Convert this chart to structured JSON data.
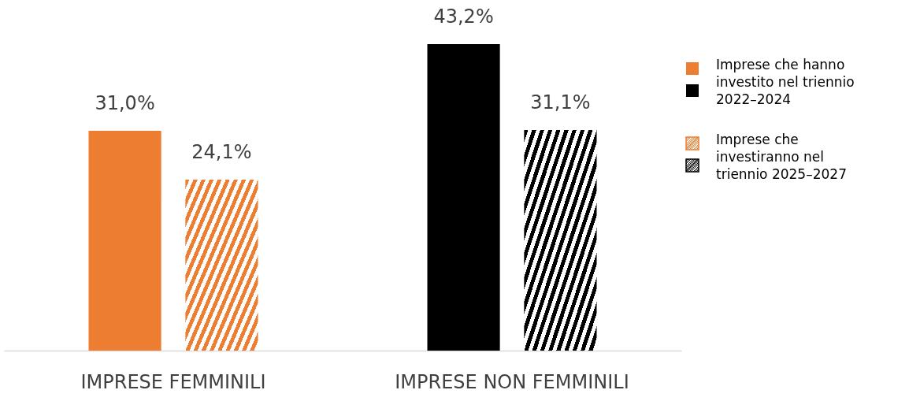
{
  "chart_data": {
    "type": "bar",
    "categories": [
      "IMPRESE FEMMINILI",
      "IMPRESE NON FEMMINILI"
    ],
    "series": [
      {
        "name": "Imprese che hanno investito nel triennio 2022–2024",
        "colors": [
          "#ed7d31",
          "#000000"
        ],
        "values": [
          31.0,
          43.2
        ],
        "value_labels": [
          "31,0%",
          "43,2%"
        ]
      },
      {
        "name": "Imprese che investiranno nel triennio 2025–2027",
        "colors": [
          "#ed7d31",
          "#000000"
        ],
        "values": [
          24.1,
          31.1
        ],
        "value_labels": [
          "24,1%",
          "31,1%"
        ]
      }
    ],
    "relative": false,
    "legend": "right",
    "grid": false
  }
}
